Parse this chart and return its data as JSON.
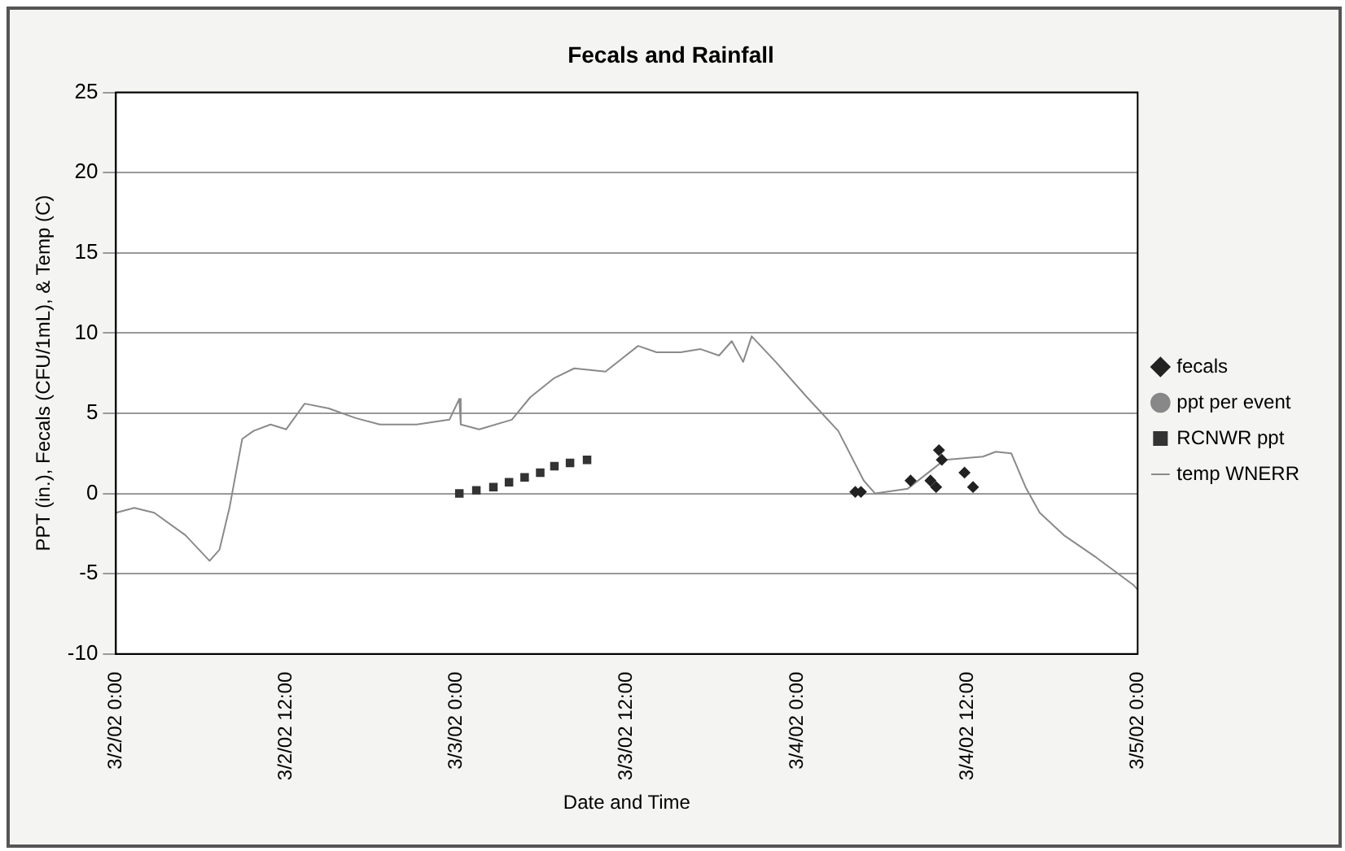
{
  "chart_data": {
    "type": "scatter",
    "title": "Fecals and Rainfall",
    "xlabel": "Date and Time",
    "ylabel": "PPT (in.), Fecals (CFU/1mL), & Temp (C)",
    "xlim": [
      "--03-02T00:00",
      "--03-05T00:00"
    ],
    "xticks": [
      {
        "value": "--03-02T00:00",
        "label": "3/2/02 0:00"
      },
      {
        "value": "--03-02T12:00",
        "label": "3/2/02 12:00"
      },
      {
        "value": "--03-03T00:00",
        "label": "3/3/02 0:00"
      },
      {
        "value": "--03-03T12:00",
        "label": "3/3/02 12:00"
      },
      {
        "value": "--03-04T00:00",
        "label": "3/4/02 0:00"
      },
      {
        "value": "--03-04T12:00",
        "label": "3/4/02 12:00"
      },
      {
        "value": "--03-05T00:00",
        "label": "3/5/02 0:00"
      }
    ],
    "ylim": [
      -10,
      25
    ],
    "yticks": [
      -10,
      -5,
      0,
      5,
      10,
      15,
      20,
      25
    ],
    "grid": "y",
    "legend": "right",
    "series": [
      {
        "name": "fecals",
        "marker": "diamond",
        "color": "#222222",
        "x": [
          "--03-04T04:06",
          "--03-04T04:30",
          "--03-04T08:00",
          "--03-04T09:24",
          "--03-04T09:48",
          "--03-04T10:00",
          "--03-04T10:12",
          "--03-04T11:48",
          "--03-04T12:24"
        ],
        "values": [
          0.1,
          0.1,
          0.8,
          0.8,
          0.4,
          2.7,
          2.1,
          1.3,
          0.4
        ]
      },
      {
        "name": "ppt per event",
        "marker": "circle",
        "color": "#888888"
      },
      {
        "name": "RCNWR ppt",
        "marker": "square",
        "color": "#333333",
        "x": [
          "--03-03T00:12",
          "--03-03T01:24",
          "--03-03T02:36",
          "--03-03T03:42",
          "--03-03T04:48",
          "--03-03T05:54",
          "--03-03T06:54",
          "--03-03T08:00",
          "--03-03T09:12"
        ],
        "values": [
          0,
          0.2,
          0.4,
          0.7,
          1.0,
          1.3,
          1.7,
          1.9,
          2.1
        ]
      },
      {
        "name": "temp WNERR",
        "type": "line",
        "marker": "none",
        "color": "#8a8a8a",
        "x": [
          "--03-02T00:00",
          "--03-02T01:18",
          "--03-02T02:42",
          "--03-02T04:54",
          "--03-02T06:36",
          "--03-02T07:18",
          "--03-02T08:00",
          "--03-02T08:54",
          "--03-02T09:42",
          "--03-02T10:54",
          "--03-02T12:00",
          "--03-02T13:18",
          "--03-02T15:00",
          "--03-02T16:54",
          "--03-02T18:36",
          "--03-02T21:12",
          "--03-02T23:30",
          "--03-03T00:12",
          "--03-03T00:18",
          "--03-03T01:36",
          "--03-03T03:54",
          "--03-03T05:12",
          "--03-03T06:54",
          "--03-03T08:18",
          "--03-03T10:30",
          "--03-03T12:48",
          "--03-03T14:06",
          "--03-03T15:48",
          "--03-03T17:12",
          "--03-03T18:30",
          "--03-03T19:24",
          "--03-03T20:12",
          "--03-03T20:48",
          "--03-03T22:30",
          "--03-04T00:42",
          "--03-04T02:54",
          "--03-04T04:42",
          "--03-04T05:30",
          "--03-04T07:48",
          "--03-04T09:06",
          "--03-04T10:24",
          "--03-04T13:06",
          "--03-04T14:00",
          "--03-04T15:06",
          "--03-04T16:06",
          "--03-04T17:06",
          "--03-04T18:48",
          "--03-04T21:06",
          "--03-04T23:42",
          "--03-05T00:00"
        ],
        "values": [
          -1.2,
          -0.9,
          -1.2,
          -2.6,
          -4.2,
          -3.5,
          -0.9,
          3.4,
          3.9,
          4.3,
          4.0,
          5.6,
          5.3,
          4.7,
          4.3,
          4.3,
          4.6,
          5.9,
          4.3,
          4.0,
          4.6,
          6.0,
          7.2,
          7.8,
          7.6,
          9.2,
          8.8,
          8.8,
          9.0,
          8.6,
          9.5,
          8.2,
          9.8,
          8.2,
          6.0,
          3.9,
          0.8,
          0,
          0.3,
          1.2,
          2.1,
          2.3,
          2.6,
          2.5,
          0.4,
          -1.2,
          -2.6,
          -4.0,
          -5.7,
          -6.0
        ]
      }
    ]
  }
}
